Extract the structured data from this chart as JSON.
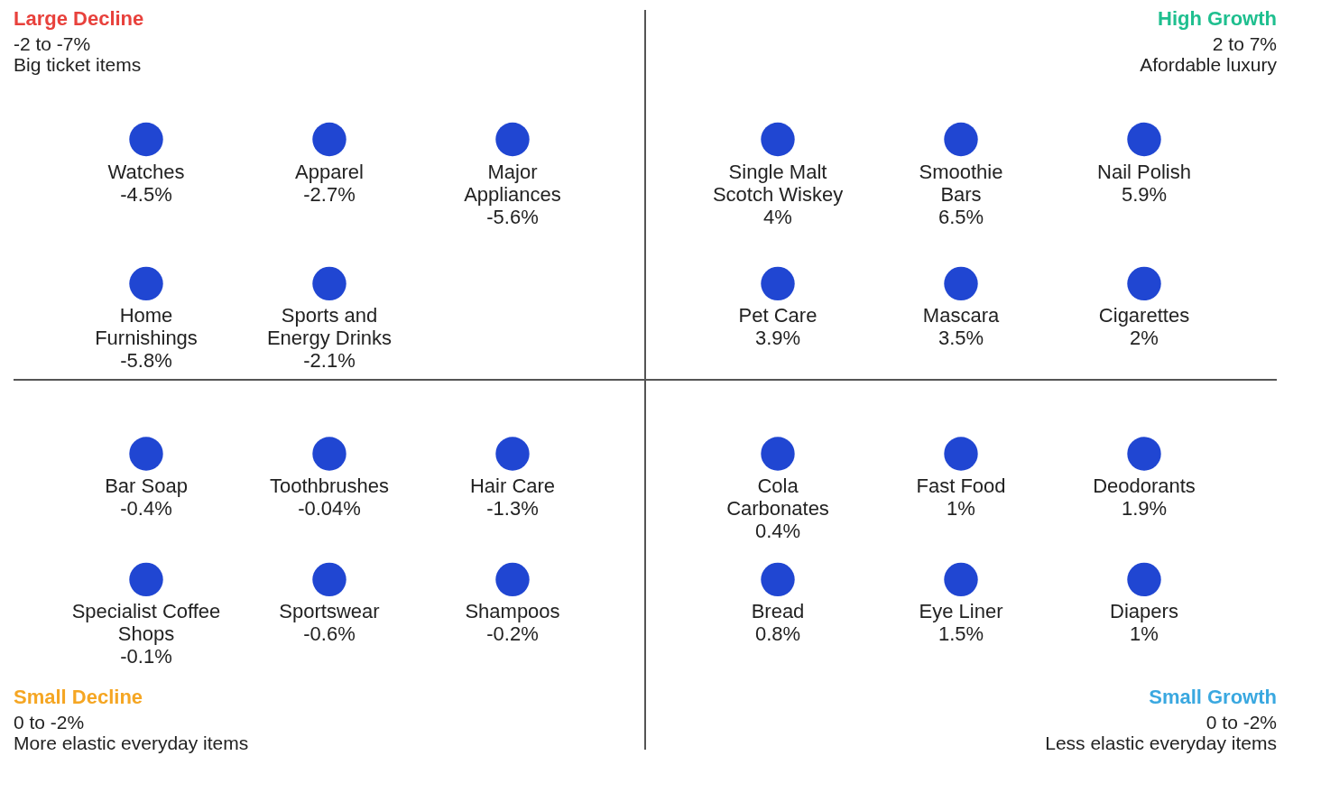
{
  "chart_data": {
    "type": "other",
    "categories": [
      "Watches",
      "Apparel",
      "Major Appliances",
      "Home Furnishings",
      "Sports and Energy Drinks",
      "Single Malt Scotch Wiskey",
      "Smoothie Bars",
      "Nail Polish",
      "Pet Care",
      "Mascara",
      "Cigarettes",
      "Bar Soap",
      "Toothbrushes",
      "Hair Care",
      "Specialist Coffee Shops",
      "Sportswear",
      "Shampoos",
      "Cola Carbonates",
      "Fast Food",
      "Deodorants",
      "Bread",
      "Eye Liner",
      "Diapers"
    ],
    "values": [
      -4.5,
      -2.7,
      -5.6,
      -5.8,
      -2.1,
      4,
      6.5,
      5.9,
      3.9,
      3.5,
      2,
      -0.4,
      -0.04,
      -1.3,
      -0.1,
      -0.6,
      -0.2,
      0.4,
      1,
      1.9,
      0.8,
      1.5,
      1
    ],
    "value_labels": [
      "-4.5%",
      "-2.7%",
      "-5.6%",
      "-5.8%",
      "-2.1%",
      "4%",
      "6.5%",
      "5.9%",
      "3.9%",
      "3.5%",
      "2%",
      "-0.4%",
      "-0.04%",
      "-1.3%",
      "-0.1%",
      "-0.6%",
      "-0.2%",
      "0.4%",
      "1%",
      "1.9%",
      "0.8%",
      "1.5%",
      "1%"
    ],
    "color": "#2046d2",
    "annotations": [
      "Large Decline",
      "-2 to -7%",
      "Big ticket items",
      "High Growth",
      "2 to 7%",
      "Afordable luxury",
      "Small Decline",
      "0 to -2%",
      "More elastic everyday items",
      "Small Growth",
      "0 to -2%",
      "Less elastic everyday items"
    ]
  }
}
